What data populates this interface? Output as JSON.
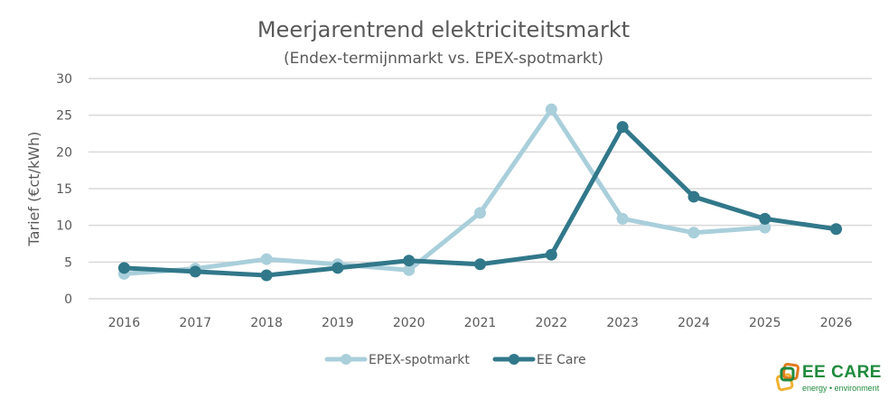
{
  "chart_data": {
    "type": "line",
    "title": "Meerjarentrend elektriciteitsmarkt",
    "subtitle": "(Endex-termijnmarkt vs. EPEX-spotmarkt)",
    "xlabel": "",
    "ylabel": "Tarief (€ct/kWh)",
    "categories": [
      "2016",
      "2017",
      "2018",
      "2019",
      "2020",
      "2021",
      "2022",
      "2023",
      "2024",
      "2025",
      "2026"
    ],
    "yticks": [
      "0",
      "5",
      "10",
      "15",
      "20",
      "25",
      "30"
    ],
    "ylim": [
      0,
      30
    ],
    "grid": true,
    "legend_position": "bottom",
    "series": [
      {
        "name": "EPEX-spotmarkt",
        "color": "#a9cfdb",
        "values": [
          3.4,
          4.1,
          5.4,
          4.7,
          3.9,
          11.7,
          25.8,
          10.9,
          9.0,
          9.7,
          null
        ]
      },
      {
        "name": "EE Care",
        "color": "#31788a",
        "values": [
          4.2,
          3.7,
          3.2,
          4.2,
          5.2,
          4.7,
          6.0,
          23.4,
          13.9,
          10.9,
          9.5
        ]
      }
    ]
  },
  "logo": {
    "name": "EE CARE",
    "tagline": "energy • environment",
    "colors": {
      "green": "#1f8a3c",
      "orange": "#e07b1f",
      "yellow": "#f2b233"
    }
  }
}
